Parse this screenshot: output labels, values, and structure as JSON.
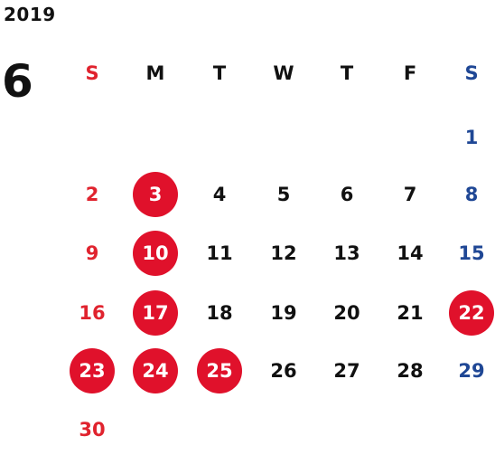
{
  "calendar": {
    "year": "2019",
    "month": "6",
    "weekdays": [
      "S",
      "M",
      "T",
      "W",
      "T",
      "F",
      "S"
    ],
    "weekday_colors": {
      "sunday": "#e0232e",
      "saturday": "#1f4795",
      "weekday": "#111111"
    },
    "holiday_circle_color": "#e0112b",
    "weeks": [
      [
        "",
        "",
        "",
        "",
        "",
        "",
        "1"
      ],
      [
        "2",
        "3",
        "4",
        "5",
        "6",
        "7",
        "8"
      ],
      [
        "9",
        "10",
        "11",
        "12",
        "13",
        "14",
        "15"
      ],
      [
        "16",
        "17",
        "18",
        "19",
        "20",
        "21",
        "22"
      ],
      [
        "23",
        "24",
        "25",
        "26",
        "27",
        "28",
        "29"
      ],
      [
        "30",
        "",
        "",
        "",
        "",
        "",
        ""
      ]
    ],
    "highlighted_days": [
      "3",
      "10",
      "17",
      "22",
      "23",
      "24",
      "25"
    ]
  }
}
